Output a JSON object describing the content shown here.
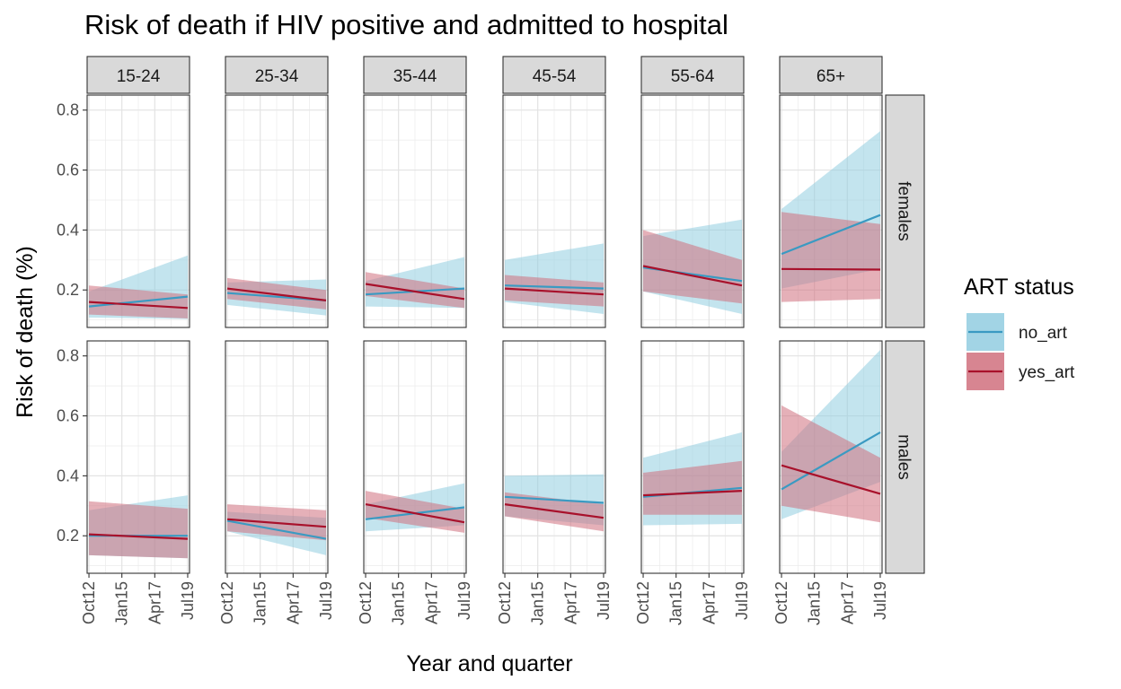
{
  "chart_data": {
    "type": "line",
    "title": "Risk of death if HIV positive and admitted to hospital",
    "xlabel": "Year and quarter",
    "ylabel": "Risk of death (%)",
    "x_ticks": [
      "Oct12",
      "Jan15",
      "Apr17",
      "Jul19"
    ],
    "x_tick_pos": [
      0,
      9,
      18,
      27
    ],
    "xlim": [
      -0.5,
      27.5
    ],
    "y_ticks": [
      0.2,
      0.4,
      0.6,
      0.8
    ],
    "y_tick_labels": [
      "0.2",
      "0.4",
      "0.6",
      "0.8"
    ],
    "ylim": [
      0.075,
      0.85
    ],
    "grid": true,
    "legend": {
      "title": "ART status",
      "position": "right",
      "entries": [
        {
          "name": "no_art",
          "color": "#3a9ac2",
          "fill": "#92cde0"
        },
        {
          "name": "yes_art",
          "color": "#a8112b",
          "fill": "#d0707e"
        }
      ]
    },
    "columns": [
      "15-24",
      "25-34",
      "35-44",
      "45-54",
      "55-64",
      "65+"
    ],
    "rows": [
      "females",
      "males"
    ],
    "panels": [
      {
        "row": "females",
        "col": "15-24",
        "series": [
          {
            "name": "no_art",
            "x": [
              0,
              27
            ],
            "y": [
              0.145,
              0.178
            ],
            "lower": [
              0.108,
              0.103
            ],
            "upper": [
              0.195,
              0.315
            ]
          },
          {
            "name": "yes_art",
            "x": [
              0,
              27
            ],
            "y": [
              0.16,
              0.14
            ],
            "lower": [
              0.118,
              0.105
            ],
            "upper": [
              0.215,
              0.185
            ]
          }
        ]
      },
      {
        "row": "females",
        "col": "25-34",
        "series": [
          {
            "name": "no_art",
            "x": [
              0,
              27
            ],
            "y": [
              0.19,
              0.165
            ],
            "lower": [
              0.15,
              0.115
            ],
            "upper": [
              0.225,
              0.235
            ]
          },
          {
            "name": "yes_art",
            "x": [
              0,
              27
            ],
            "y": [
              0.205,
              0.165
            ],
            "lower": [
              0.17,
              0.135
            ],
            "upper": [
              0.24,
              0.2
            ]
          }
        ]
      },
      {
        "row": "females",
        "col": "35-44",
        "series": [
          {
            "name": "no_art",
            "x": [
              0,
              27
            ],
            "y": [
              0.185,
              0.205
            ],
            "lower": [
              0.145,
              0.14
            ],
            "upper": [
              0.23,
              0.31
            ]
          },
          {
            "name": "yes_art",
            "x": [
              0,
              27
            ],
            "y": [
              0.22,
              0.17
            ],
            "lower": [
              0.18,
              0.14
            ],
            "upper": [
              0.26,
              0.205
            ]
          }
        ]
      },
      {
        "row": "females",
        "col": "45-54",
        "series": [
          {
            "name": "no_art",
            "x": [
              0,
              27
            ],
            "y": [
              0.215,
              0.205
            ],
            "lower": [
              0.16,
              0.12
            ],
            "upper": [
              0.3,
              0.355
            ]
          },
          {
            "name": "yes_art",
            "x": [
              0,
              27
            ],
            "y": [
              0.205,
              0.185
            ],
            "lower": [
              0.165,
              0.145
            ],
            "upper": [
              0.25,
              0.225
            ]
          }
        ]
      },
      {
        "row": "females",
        "col": "55-64",
        "series": [
          {
            "name": "no_art",
            "x": [
              0,
              27
            ],
            "y": [
              0.275,
              0.23
            ],
            "lower": [
              0.195,
              0.12
            ],
            "upper": [
              0.38,
              0.435
            ]
          },
          {
            "name": "yes_art",
            "x": [
              0,
              27
            ],
            "y": [
              0.28,
              0.215
            ],
            "lower": [
              0.195,
              0.155
            ],
            "upper": [
              0.4,
              0.3
            ]
          }
        ]
      },
      {
        "row": "females",
        "col": "65+",
        "series": [
          {
            "name": "no_art",
            "x": [
              0,
              27
            ],
            "y": [
              0.32,
              0.45
            ],
            "lower": [
              0.205,
              0.27
            ],
            "upper": [
              0.47,
              0.73
            ]
          },
          {
            "name": "yes_art",
            "x": [
              0,
              27
            ],
            "y": [
              0.27,
              0.268
            ],
            "lower": [
              0.16,
              0.17
            ],
            "upper": [
              0.46,
              0.42
            ]
          }
        ]
      },
      {
        "row": "males",
        "col": "15-24",
        "series": [
          {
            "name": "no_art",
            "x": [
              0,
              27
            ],
            "y": [
              0.2,
              0.2
            ],
            "lower": [
              0.135,
              0.125
            ],
            "upper": [
              0.285,
              0.335
            ]
          },
          {
            "name": "yes_art",
            "x": [
              0,
              27
            ],
            "y": [
              0.205,
              0.19
            ],
            "lower": [
              0.135,
              0.125
            ],
            "upper": [
              0.315,
              0.29
            ]
          }
        ]
      },
      {
        "row": "males",
        "col": "25-34",
        "series": [
          {
            "name": "no_art",
            "x": [
              0,
              27
            ],
            "y": [
              0.25,
              0.19
            ],
            "lower": [
              0.215,
              0.135
            ],
            "upper": [
              0.28,
              0.26
            ]
          },
          {
            "name": "yes_art",
            "x": [
              0,
              27
            ],
            "y": [
              0.255,
              0.23
            ],
            "lower": [
              0.215,
              0.185
            ],
            "upper": [
              0.305,
              0.285
            ]
          }
        ]
      },
      {
        "row": "males",
        "col": "35-44",
        "series": [
          {
            "name": "no_art",
            "x": [
              0,
              27
            ],
            "y": [
              0.255,
              0.295
            ],
            "lower": [
              0.215,
              0.235
            ],
            "upper": [
              0.305,
              0.375
            ]
          },
          {
            "name": "yes_art",
            "x": [
              0,
              27
            ],
            "y": [
              0.305,
              0.245
            ],
            "lower": [
              0.26,
              0.21
            ],
            "upper": [
              0.35,
              0.29
            ]
          }
        ]
      },
      {
        "row": "males",
        "col": "45-54",
        "series": [
          {
            "name": "no_art",
            "x": [
              0,
              27
            ],
            "y": [
              0.33,
              0.31
            ],
            "lower": [
              0.265,
              0.235
            ],
            "upper": [
              0.4,
              0.405
            ]
          },
          {
            "name": "yes_art",
            "x": [
              0,
              27
            ],
            "y": [
              0.305,
              0.26
            ],
            "lower": [
              0.265,
              0.215
            ],
            "upper": [
              0.345,
              0.305
            ]
          }
        ]
      },
      {
        "row": "males",
        "col": "55-64",
        "series": [
          {
            "name": "no_art",
            "x": [
              0,
              27
            ],
            "y": [
              0.33,
              0.36
            ],
            "lower": [
              0.235,
              0.24
            ],
            "upper": [
              0.46,
              0.545
            ]
          },
          {
            "name": "yes_art",
            "x": [
              0,
              27
            ],
            "y": [
              0.335,
              0.35
            ],
            "lower": [
              0.27,
              0.27
            ],
            "upper": [
              0.41,
              0.45
            ]
          }
        ]
      },
      {
        "row": "males",
        "col": "65+",
        "series": [
          {
            "name": "no_art",
            "x": [
              0,
              27
            ],
            "y": [
              0.355,
              0.545
            ],
            "lower": [
              0.255,
              0.38
            ],
            "upper": [
              0.48,
              0.82
            ]
          },
          {
            "name": "yes_art",
            "x": [
              0,
              27
            ],
            "y": [
              0.435,
              0.34
            ],
            "lower": [
              0.3,
              0.245
            ],
            "upper": [
              0.635,
              0.46
            ]
          }
        ]
      }
    ]
  }
}
